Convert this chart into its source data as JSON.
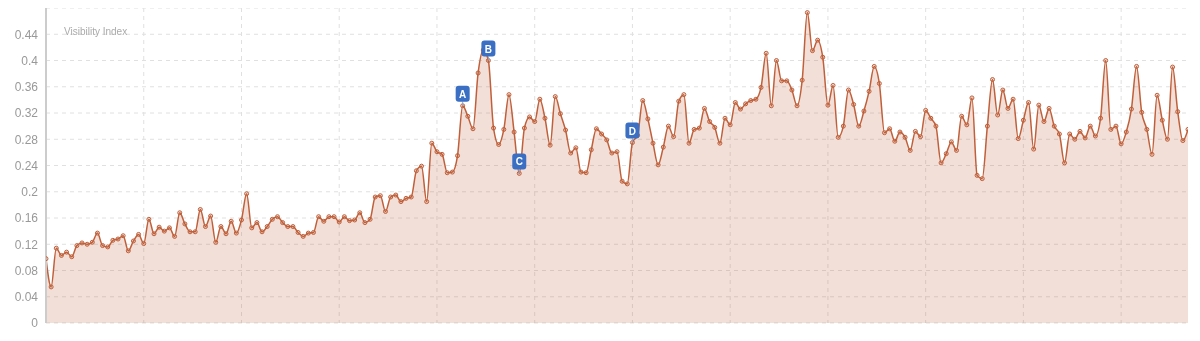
{
  "chart_data": {
    "type": "area",
    "title": "Visibility Index",
    "categories": [
      null,
      null,
      null,
      null,
      null,
      null,
      null,
      null,
      null,
      null,
      null,
      null,
      null,
      null,
      null,
      null,
      null,
      null,
      null,
      null,
      null,
      null,
      null,
      null,
      null,
      null,
      null,
      null,
      null,
      null,
      null,
      null,
      null,
      null,
      null,
      null,
      null,
      null,
      null,
      null,
      null,
      null,
      null,
      null,
      null,
      null,
      null,
      null,
      null,
      null,
      null,
      null,
      null,
      null,
      null,
      null,
      null,
      null,
      null,
      null,
      null,
      null,
      null,
      null,
      null,
      null,
      null,
      null,
      null,
      null,
      null,
      null,
      null,
      null,
      null,
      null,
      null,
      null,
      null,
      null,
      null,
      null,
      null,
      null,
      null,
      null,
      null,
      null,
      null,
      null,
      null,
      null,
      null,
      null,
      null,
      null,
      null,
      null,
      null,
      null,
      null,
      null,
      null,
      null,
      null,
      null,
      null,
      null,
      null,
      null,
      null,
      null,
      null,
      null,
      null,
      null,
      null,
      null,
      null,
      null,
      null,
      null,
      null,
      null,
      null,
      null,
      null,
      null,
      null,
      null,
      null,
      null,
      null,
      null,
      null,
      null,
      null,
      null,
      null,
      null,
      null,
      null,
      null,
      null,
      null,
      null,
      null,
      null,
      null,
      null,
      null,
      null,
      null,
      null,
      null,
      null,
      null,
      null,
      null,
      null,
      null,
      null,
      null,
      null,
      null,
      null,
      null,
      null,
      null,
      null,
      null,
      null,
      null,
      null,
      null,
      null,
      null,
      null,
      null,
      null,
      null,
      null,
      null,
      null,
      null,
      null,
      null,
      null,
      null,
      null,
      null,
      null,
      null,
      null,
      null,
      null,
      null,
      null,
      null,
      null,
      null,
      null,
      null,
      null,
      null,
      null,
      null,
      null,
      null,
      null,
      null,
      null,
      null,
      null,
      null,
      null,
      null,
      null,
      null,
      null,
      null,
      null,
      null
    ],
    "series": [
      {
        "color": "#c0603a",
        "values": [
          0.098,
          0.055,
          0.114,
          0.103,
          0.108,
          0.101,
          0.118,
          0.122,
          0.12,
          0.123,
          0.137,
          0.118,
          0.116,
          0.126,
          0.128,
          0.133,
          0.11,
          0.125,
          0.135,
          0.121,
          0.158,
          0.136,
          0.146,
          0.14,
          0.145,
          0.132,
          0.168,
          0.151,
          0.139,
          0.139,
          0.173,
          0.147,
          0.163,
          0.123,
          0.147,
          0.136,
          0.155,
          0.137,
          0.157,
          0.197,
          0.145,
          0.153,
          0.139,
          0.147,
          0.158,
          0.162,
          0.153,
          0.147,
          0.147,
          0.138,
          0.132,
          0.137,
          0.138,
          0.162,
          0.155,
          0.162,
          0.162,
          0.154,
          0.162,
          0.156,
          0.157,
          0.168,
          0.153,
          0.158,
          0.192,
          0.194,
          0.17,
          0.192,
          0.195,
          0.185,
          0.19,
          0.192,
          0.232,
          0.239,
          0.185,
          0.274,
          0.261,
          0.257,
          0.229,
          0.23,
          0.255,
          0.331,
          0.315,
          0.296,
          0.381,
          0.416,
          0.4,
          0.297,
          0.272,
          0.295,
          0.348,
          0.291,
          0.228,
          0.297,
          0.314,
          0.307,
          0.341,
          0.312,
          0.271,
          0.345,
          0.319,
          0.294,
          0.259,
          0.267,
          0.23,
          0.229,
          0.264,
          0.296,
          0.288,
          0.279,
          0.259,
          0.261,
          0.216,
          0.212,
          0.275,
          0.286,
          0.339,
          0.311,
          0.274,
          0.241,
          0.268,
          0.3,
          0.284,
          0.338,
          0.348,
          0.274,
          0.295,
          0.297,
          0.327,
          0.307,
          0.298,
          0.274,
          0.312,
          0.302,
          0.336,
          0.326,
          0.334,
          0.339,
          0.341,
          0.359,
          0.411,
          0.331,
          0.4,
          0.369,
          0.369,
          0.355,
          0.331,
          0.37,
          0.473,
          0.415,
          0.431,
          0.405,
          0.332,
          0.362,
          0.283,
          0.3,
          0.355,
          0.333,
          0.3,
          0.323,
          0.353,
          0.391,
          0.365,
          0.29,
          0.296,
          0.277,
          0.291,
          0.283,
          0.263,
          0.292,
          0.284,
          0.324,
          0.312,
          0.3,
          0.244,
          0.258,
          0.276,
          0.263,
          0.315,
          0.302,
          0.343,
          0.225,
          0.22,
          0.3,
          0.371,
          0.317,
          0.355,
          0.327,
          0.341,
          0.281,
          0.309,
          0.336,
          0.265,
          0.332,
          0.307,
          0.327,
          0.3,
          0.288,
          0.244,
          0.288,
          0.28,
          0.292,
          0.282,
          0.3,
          0.285,
          0.312,
          0.4,
          0.295,
          0.3,
          0.273,
          0.291,
          0.326,
          0.391,
          0.321,
          0.295,
          0.257,
          0.347,
          0.309,
          0.28,
          0.39,
          0.322,
          0.278,
          0.295
        ]
      }
    ],
    "ylim": [
      0,
      0.48
    ],
    "yticks": [
      0,
      0.04,
      0.08,
      0.12,
      0.16,
      0.2,
      0.24,
      0.28,
      0.32,
      0.36,
      0.4,
      0.44
    ],
    "grid": true,
    "marker": "circle",
    "line_style": "solid",
    "annotations": [
      {
        "text": "A",
        "y": 0.331
      },
      {
        "text": "B",
        "y": 0.4
      },
      {
        "text": "C",
        "y": 0.228
      },
      {
        "text": "D",
        "y": 0.275
      }
    ]
  }
}
